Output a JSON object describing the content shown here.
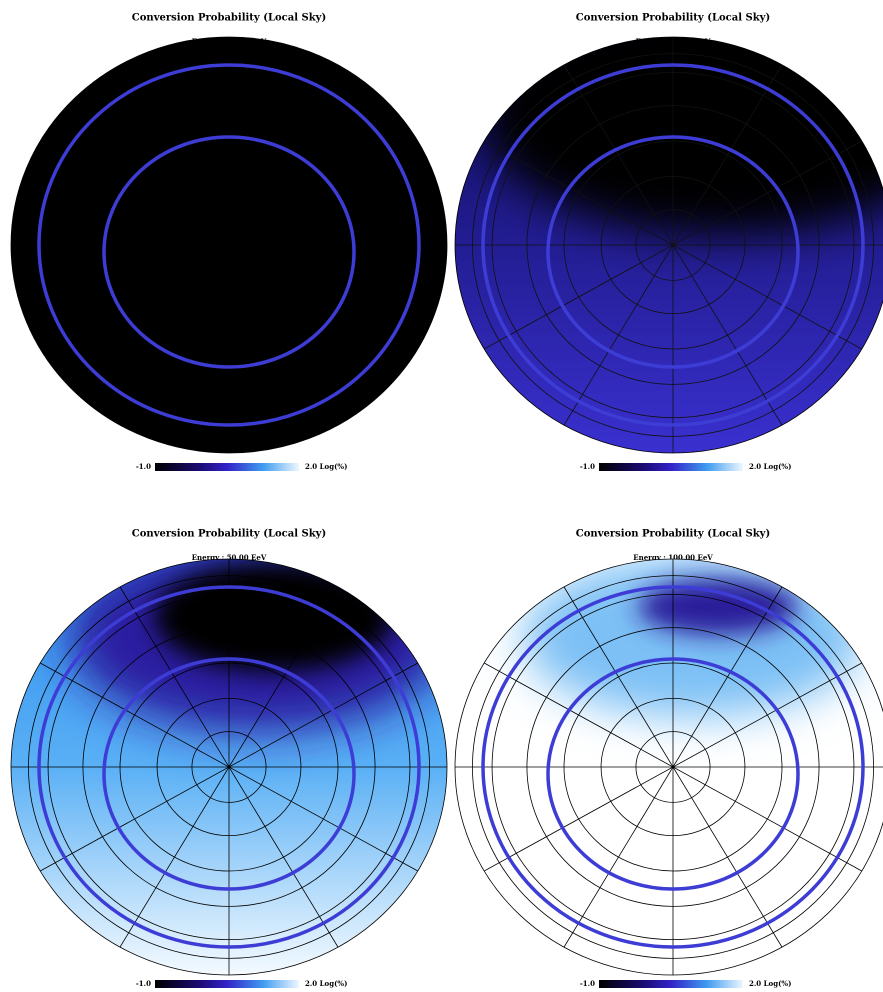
{
  "panels": [
    {
      "title": "Conversion Probability (Local Sky)",
      "energy": "Energy :  10.00 EeV",
      "cbar_min": "-1.0",
      "cbar_max": "2.0 Log(%)"
    },
    {
      "title": "Conversion Probability (Local Sky)",
      "energy": "Energy :  25.00 EeV",
      "cbar_min": "-1.0",
      "cbar_max": "2.0 Log(%)"
    },
    {
      "title": "Conversion Probability (Local Sky)",
      "energy": "Energy :  50.00 EeV",
      "cbar_min": "-1.0",
      "cbar_max": "2.0 Log(%)"
    },
    {
      "title": "Conversion Probability (Local Sky)",
      "energy": "Energy :  100.00 EeV",
      "cbar_min": "-1.0",
      "cbar_max": "2.0 Log(%)"
    }
  ]
}
